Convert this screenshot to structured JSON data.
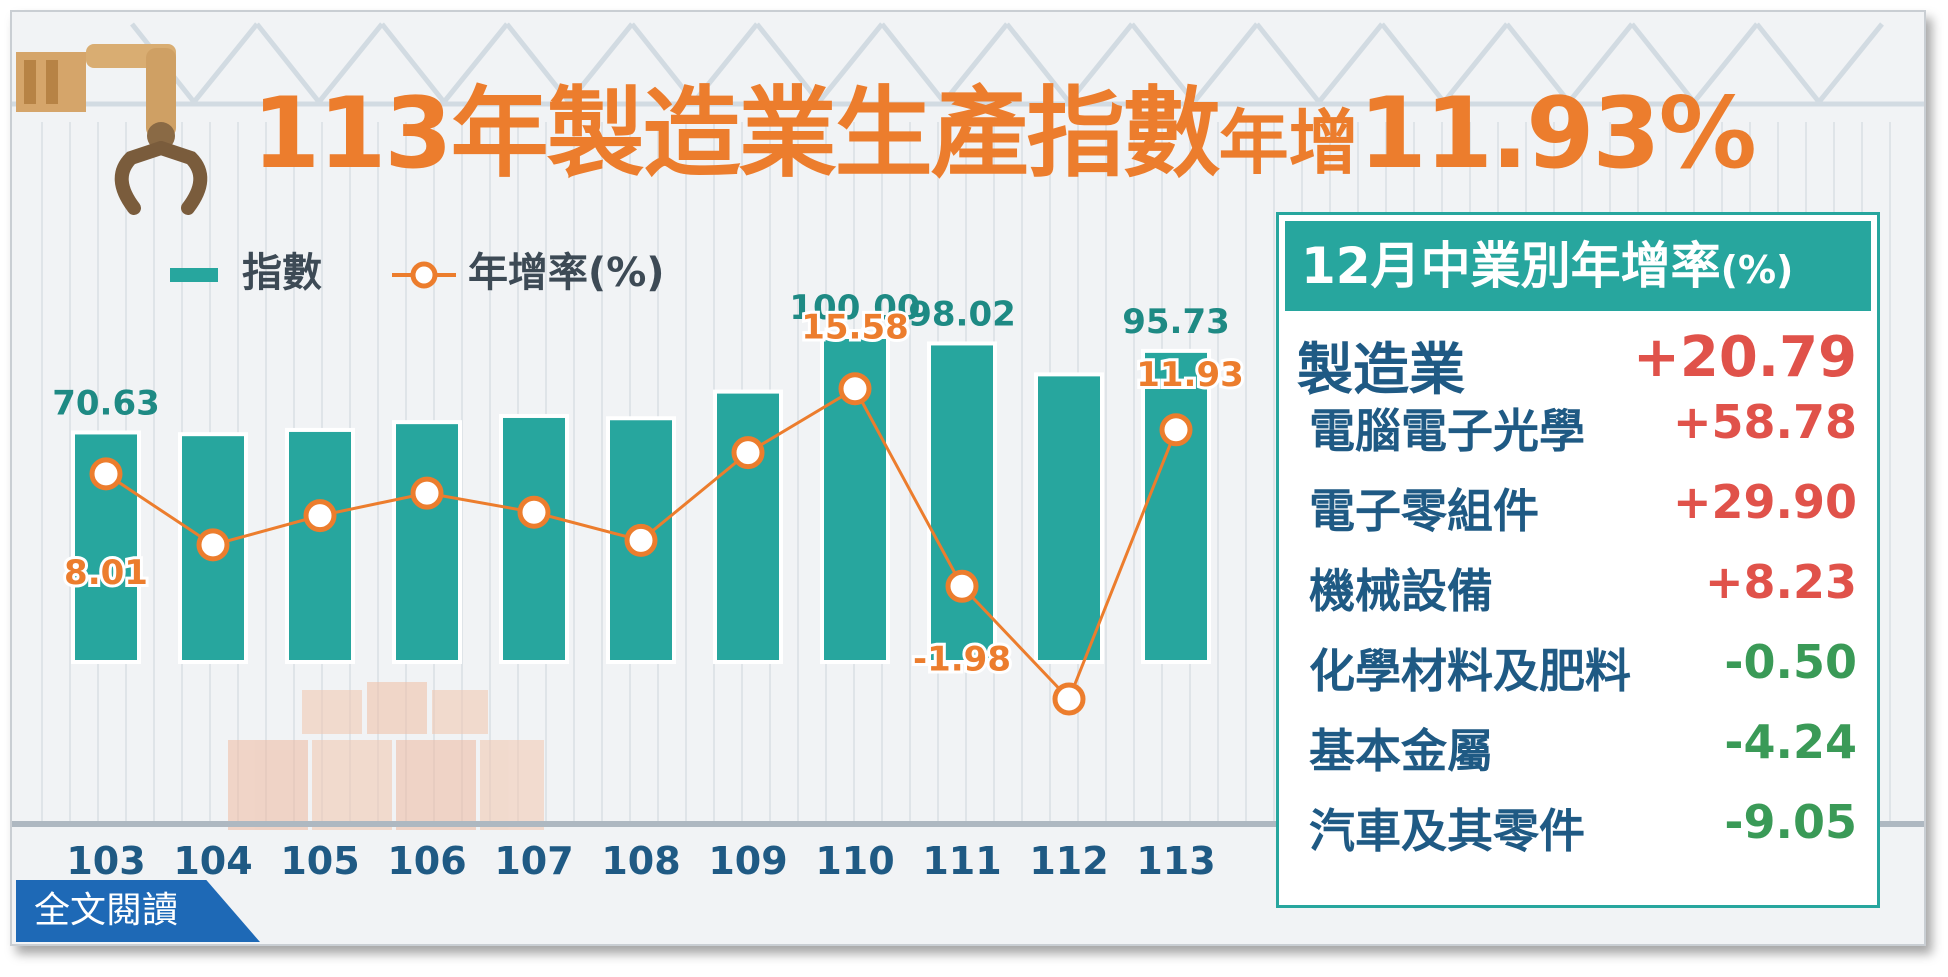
{
  "title": {
    "prefix": "113年",
    "main": "製造業生產指數",
    "suffix": "年增",
    "value": "11.93%"
  },
  "legend": {
    "bar_label": "指數",
    "line_label": "年增率(%)"
  },
  "colors": {
    "bar": "#27a69e",
    "line": "#ec7d2d",
    "positive": "#e0524a",
    "negative": "#3a9a57",
    "name": "#1f5a84",
    "title": "#ec7d2d",
    "button": "#1e69b6"
  },
  "chart_data": {
    "type": "bar",
    "categories": [
      "103",
      "104",
      "105",
      "106",
      "107",
      "108",
      "109",
      "110",
      "111",
      "112",
      "113"
    ],
    "series": [
      {
        "name": "指數",
        "type": "bar",
        "values": [
          70.63,
          70.1,
          71.4,
          73.8,
          75.7,
          75.0,
          83.2,
          100.0,
          98.02,
          88.5,
          95.73
        ],
        "labeled": [
          "70.63",
          null,
          null,
          null,
          null,
          null,
          null,
          "100.00",
          "98.02",
          null,
          "95.73"
        ]
      },
      {
        "name": "年增率(%)",
        "type": "line",
        "values": [
          8.01,
          1.7,
          4.3,
          6.3,
          4.6,
          2.1,
          9.9,
          15.58,
          -1.98,
          -12.0,
          11.93
        ],
        "labeled": [
          "8.01",
          null,
          null,
          null,
          null,
          null,
          null,
          "15.58",
          "-1.98",
          null,
          "11.93"
        ]
      }
    ]
  },
  "panel": {
    "title": "12月中業別年增率",
    "unit": "(%)",
    "rows": [
      {
        "name": "製造業",
        "value": "+20.79",
        "sign": "positive"
      },
      {
        "name": "電腦電子光學",
        "value": "+58.78",
        "sign": "positive"
      },
      {
        "name": "電子零組件",
        "value": "+29.90",
        "sign": "positive"
      },
      {
        "name": "機械設備",
        "value": "+8.23",
        "sign": "positive"
      },
      {
        "name": "化學材料及肥料",
        "value": "-0.50",
        "sign": "negative"
      },
      {
        "name": "基本金屬",
        "value": "-4.24",
        "sign": "negative"
      },
      {
        "name": "汽車及其零件",
        "value": "-9.05",
        "sign": "negative"
      }
    ]
  },
  "read_button": {
    "label": "全文閱讀"
  },
  "icons": {
    "claw": "robotic-claw-icon",
    "boxes": "boxes-icon"
  }
}
